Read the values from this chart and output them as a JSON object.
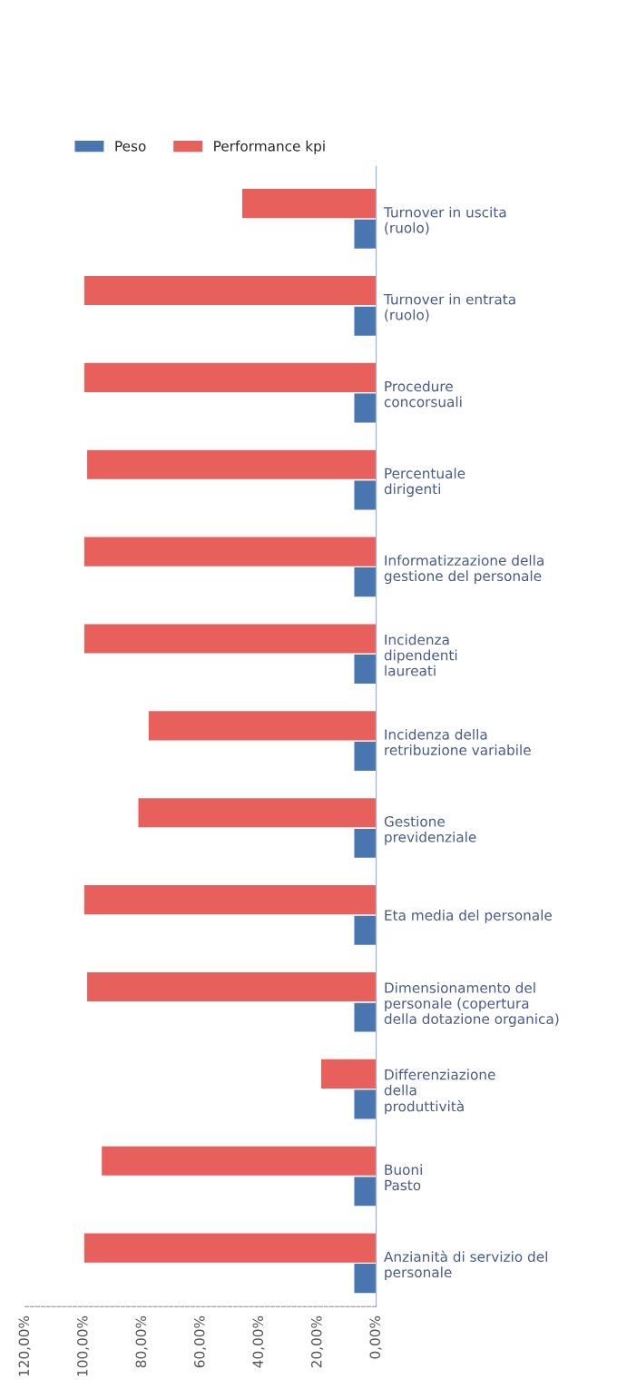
{
  "chart_data": {
    "type": "bar",
    "orientation": "horizontal",
    "categories": [
      "Turnover in uscita\n(ruolo)",
      "Turnover in entrata\n(ruolo)",
      "Procedure\nconcorsuali",
      "Percentuale\ndirigenti",
      "Informatizzazione della\ngestione del personale",
      "Incidenza\ndipendenti\nlaureati",
      "Incidenza della\nretribuzione variabile",
      "Gestione\nprevidenziale",
      "Eta media del personale",
      "Dimensionamento del\npersonale (copertura\ndella dotazione organica)",
      "Differenziazione\ndella\nproduttività",
      "Buoni\nPasto",
      "Anzianità di servizio del\npersonale"
    ],
    "series": [
      {
        "name": "Peso",
        "color": "#4a76b0",
        "values": [
          7.7,
          7.7,
          7.7,
          7.7,
          7.7,
          7.7,
          7.7,
          7.7,
          7.7,
          7.7,
          7.7,
          7.7,
          7.7
        ]
      },
      {
        "name": "Performance kpi",
        "color": "#e8605c",
        "values": [
          46,
          100,
          100,
          99,
          100,
          100,
          78,
          81.5,
          100,
          99,
          19,
          94,
          100
        ]
      }
    ],
    "xlim": [
      120,
      0
    ],
    "xticks": [
      {
        "value": 120,
        "label": "120,00%"
      },
      {
        "value": 100,
        "label": "100,00%"
      },
      {
        "value": 80,
        "label": "80,00%"
      },
      {
        "value": 60,
        "label": "60,00%"
      },
      {
        "value": 40,
        "label": "40,00%"
      },
      {
        "value": 20,
        "label": "20,00%"
      },
      {
        "value": 0,
        "label": "0,00%"
      }
    ],
    "grid": false,
    "legend": "top"
  }
}
